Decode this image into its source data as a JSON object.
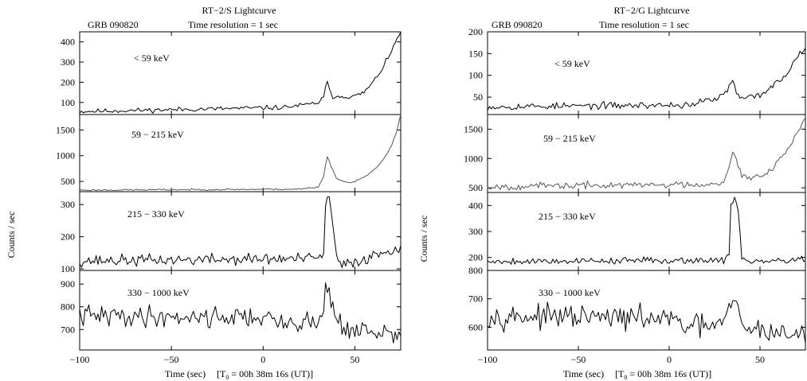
{
  "chart_data": [
    {
      "type": "line",
      "title": "RT−2/S Lightcurve",
      "burst_label": "GRB 090820",
      "resolution_label": "Time resolution = 1 sec",
      "xlabel": "Time (sec)",
      "xlabel_t0": "[T",
      "xlabel_t0_sub": "0",
      "xlabel_t0_rest": " = 00h 38m 16s (UT)]",
      "ylabel": "Counts / sec",
      "xlim": [
        -100,
        75
      ],
      "xticks": [
        -100,
        -50,
        0,
        50
      ],
      "xtick_labels": [
        "−100",
        "−50",
        "0",
        "50"
      ],
      "panels": [
        {
          "band": "< 59 keV",
          "ylim": [
            40,
            450
          ],
          "yticks": [
            100,
            200,
            300,
            400
          ],
          "color": "#000000",
          "profile": [
            [
              -100,
              55
            ],
            [
              10,
              75
            ],
            [
              25,
              90
            ],
            [
              30,
              100
            ],
            [
              33,
              125
            ],
            [
              34,
              170
            ],
            [
              35,
              195
            ],
            [
              36,
              170
            ],
            [
              38,
              130
            ],
            [
              50,
              130
            ],
            [
              55,
              150
            ],
            [
              60,
              200
            ],
            [
              65,
              270
            ],
            [
              70,
              350
            ],
            [
              73,
              420
            ],
            [
              75,
              455
            ]
          ],
          "noise": 9,
          "seed": 11
        },
        {
          "band": "59 − 215 keV",
          "ylim": [
            300,
            1800
          ],
          "yticks": [
            500,
            1000,
            1500
          ],
          "color": "#555555",
          "profile": [
            [
              -100,
              330
            ],
            [
              20,
              350
            ],
            [
              30,
              390
            ],
            [
              33,
              600
            ],
            [
              35,
              1000
            ],
            [
              37,
              800
            ],
            [
              40,
              560
            ],
            [
              45,
              480
            ],
            [
              50,
              500
            ],
            [
              55,
              580
            ],
            [
              60,
              700
            ],
            [
              65,
              900
            ],
            [
              70,
              1200
            ],
            [
              73,
              1500
            ],
            [
              75,
              1800
            ]
          ],
          "noise": 12,
          "seed": 23
        },
        {
          "band": "215 − 330 keV",
          "ylim": [
            95,
            340
          ],
          "yticks": [
            100,
            200,
            300
          ],
          "color": "#000000",
          "profile": [
            [
              -100,
              125
            ],
            [
              30,
              132
            ],
            [
              33,
              150
            ],
            [
              34,
              300
            ],
            [
              36,
              320
            ],
            [
              38,
              240
            ],
            [
              40,
              130
            ],
            [
              43,
              110
            ],
            [
              55,
              130
            ],
            [
              65,
              150
            ],
            [
              75,
              170
            ]
          ],
          "noise": 14,
          "seed": 37
        },
        {
          "band": "330 − 1000 keV",
          "ylim": [
            610,
            960
          ],
          "yticks": [
            700,
            800,
            900
          ],
          "color": "#000000",
          "profile": [
            [
              -100,
              760
            ],
            [
              0,
              755
            ],
            [
              10,
              720
            ],
            [
              20,
              740
            ],
            [
              30,
              720
            ],
            [
              33,
              800
            ],
            [
              34,
              900
            ],
            [
              36,
              880
            ],
            [
              38,
              780
            ],
            [
              45,
              700
            ],
            [
              55,
              690
            ],
            [
              75,
              670
            ]
          ],
          "noise": 36,
          "seed": 41
        }
      ]
    },
    {
      "type": "line",
      "title": "RT−2/G Lightcurve",
      "burst_label": "GRB 090820",
      "resolution_label": "Time resolution = 1 sec",
      "xlabel": "Time (sec)",
      "xlabel_t0": "[T",
      "xlabel_t0_sub": "0",
      "xlabel_t0_rest": " = 00h 38m 16s (UT)]",
      "ylabel": "Counts / sec",
      "xlim": [
        -100,
        75
      ],
      "xticks": [
        -100,
        -50,
        0,
        50
      ],
      "xtick_labels": [
        "−100",
        "−50",
        "0",
        "50"
      ],
      "panels": [
        {
          "band": "< 59 keV",
          "ylim": [
            10,
            200
          ],
          "yticks": [
            50,
            100,
            150,
            200
          ],
          "color": "#000000",
          "profile": [
            [
              -100,
              28
            ],
            [
              10,
              32
            ],
            [
              25,
              45
            ],
            [
              30,
              55
            ],
            [
              34,
              80
            ],
            [
              35,
              85
            ],
            [
              37,
              60
            ],
            [
              40,
              45
            ],
            [
              50,
              55
            ],
            [
              60,
              85
            ],
            [
              65,
              105
            ],
            [
              70,
              140
            ],
            [
              75,
              165
            ]
          ],
          "noise": 6,
          "seed": 53
        },
        {
          "band": "59 − 215 keV",
          "ylim": [
            420,
            1750
          ],
          "yticks": [
            500,
            1000,
            1500
          ],
          "color": "#555555",
          "profile": [
            [
              -100,
              520
            ],
            [
              20,
              560
            ],
            [
              30,
              600
            ],
            [
              33,
              900
            ],
            [
              35,
              1150
            ],
            [
              37,
              950
            ],
            [
              40,
              700
            ],
            [
              45,
              650
            ],
            [
              50,
              720
            ],
            [
              55,
              800
            ],
            [
              60,
              950
            ],
            [
              65,
              1150
            ],
            [
              70,
              1400
            ],
            [
              75,
              1700
            ]
          ],
          "noise": 45,
          "seed": 67
        },
        {
          "band": "215 − 330 keV",
          "ylim": [
            150,
            450
          ],
          "yticks": [
            200,
            300,
            400
          ],
          "color": "#000000",
          "profile": [
            [
              -100,
              185
            ],
            [
              30,
              190
            ],
            [
              33,
              220
            ],
            [
              34,
              400
            ],
            [
              36,
              435
            ],
            [
              38,
              380
            ],
            [
              40,
              200
            ],
            [
              45,
              180
            ],
            [
              75,
              195
            ]
          ],
          "noise": 10,
          "seed": 79
        },
        {
          "band": "330 − 1000 keV",
          "ylim": [
            520,
            800
          ],
          "yticks": [
            600,
            700,
            800
          ],
          "color": "#000000",
          "profile": [
            [
              -100,
              640
            ],
            [
              0,
              630
            ],
            [
              10,
              600
            ],
            [
              30,
              610
            ],
            [
              33,
              660
            ],
            [
              35,
              700
            ],
            [
              37,
              680
            ],
            [
              40,
              600
            ],
            [
              50,
              590
            ],
            [
              75,
              570
            ]
          ],
          "noise": 30,
          "seed": 97
        }
      ]
    }
  ]
}
